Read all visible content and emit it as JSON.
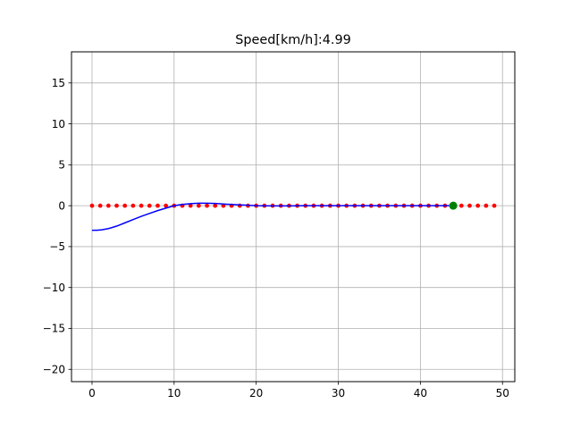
{
  "chart_data": {
    "type": "line",
    "title": "Speed[km/h]:4.99",
    "xlabel": "",
    "ylabel": "",
    "xlim": [
      -2.5,
      51.5
    ],
    "ylim": [
      -21.5,
      18.8
    ],
    "xticks": [
      0,
      10,
      20,
      30,
      40,
      50
    ],
    "yticks": [
      -20,
      -15,
      -10,
      -5,
      0,
      5,
      10,
      15
    ],
    "grid": true,
    "series": [
      {
        "kind": "points",
        "color": "#ff0000",
        "x": [
          0,
          1,
          2,
          3,
          4,
          5,
          6,
          7,
          8,
          9,
          10,
          11,
          12,
          13,
          14,
          15,
          16,
          17,
          18,
          19,
          20,
          21,
          22,
          23,
          24,
          25,
          26,
          27,
          28,
          29,
          30,
          31,
          32,
          33,
          34,
          35,
          36,
          37,
          38,
          39,
          40,
          41,
          42,
          43,
          44,
          45,
          46,
          47,
          48,
          49
        ],
        "y": [
          0,
          0,
          0,
          0,
          0,
          0,
          0,
          0,
          0,
          0,
          0,
          0,
          0,
          0,
          0,
          0,
          0,
          0,
          0,
          0,
          0,
          0,
          0,
          0,
          0,
          0,
          0,
          0,
          0,
          0,
          0,
          0,
          0,
          0,
          0,
          0,
          0,
          0,
          0,
          0,
          0,
          0,
          0,
          0,
          0,
          0,
          0,
          0,
          0,
          0
        ]
      },
      {
        "kind": "line",
        "color": "#0000ff",
        "x": [
          0,
          0.6,
          1.2,
          2,
          3,
          4,
          5,
          6,
          7,
          8,
          9,
          10,
          11,
          12,
          13,
          14,
          15,
          16,
          17,
          18,
          19,
          20,
          22,
          24,
          26,
          28,
          30,
          32,
          34,
          36,
          38,
          40,
          42,
          43,
          44
        ],
        "y": [
          -3.0,
          -3.0,
          -2.95,
          -2.8,
          -2.5,
          -2.1,
          -1.7,
          -1.3,
          -0.95,
          -0.6,
          -0.3,
          0.0,
          0.15,
          0.25,
          0.3,
          0.3,
          0.27,
          0.2,
          0.15,
          0.1,
          0.05,
          0.0,
          -0.02,
          -0.02,
          0.0,
          0.0,
          0.0,
          0.0,
          0.0,
          0.0,
          0.0,
          0.0,
          0.0,
          0.0,
          0.0
        ]
      },
      {
        "kind": "marker",
        "color": "#008000",
        "x": [
          44
        ],
        "y": [
          0
        ]
      }
    ]
  }
}
